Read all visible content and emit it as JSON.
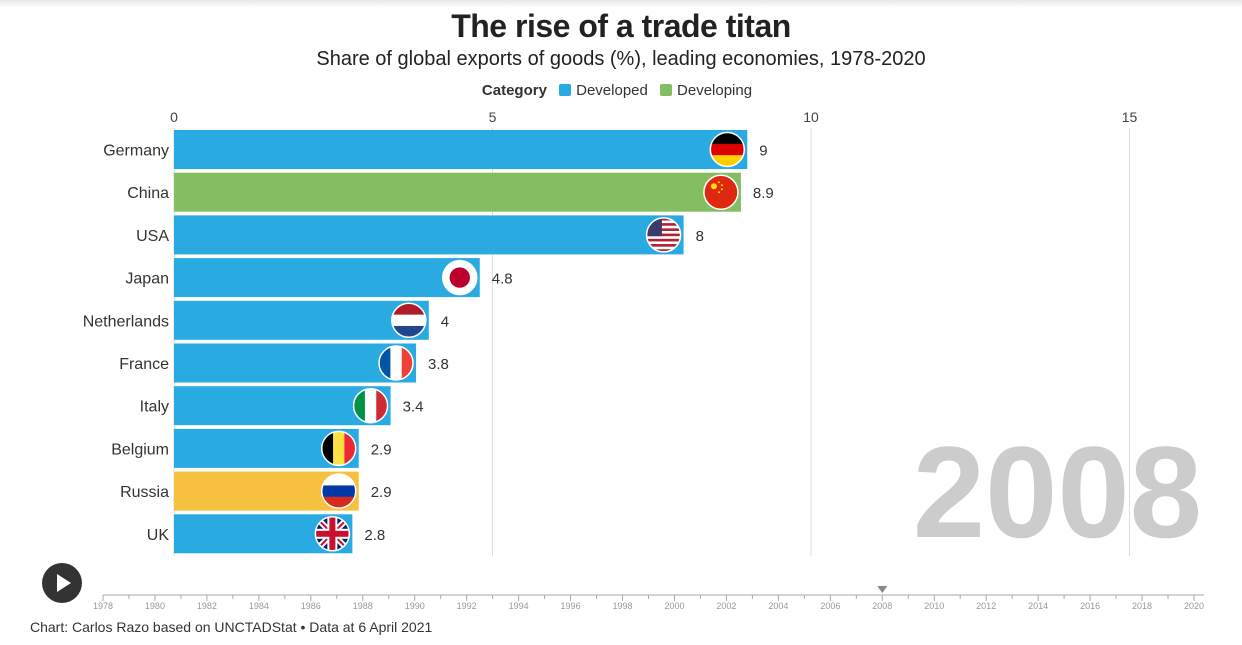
{
  "header": {
    "title": "The rise of a trade titan",
    "subtitle": "Share of global exports of goods (%), leading economies, 1978-2020"
  },
  "legend": {
    "title": "Category",
    "items": [
      {
        "label": "Developed",
        "color": "#29abe2"
      },
      {
        "label": "Developing",
        "color": "#85bd62"
      }
    ]
  },
  "chart_data": {
    "type": "bar",
    "orientation": "horizontal",
    "current_year": "2008",
    "categories": [
      "Germany",
      "China",
      "USA",
      "Japan",
      "Netherlands",
      "France",
      "Italy",
      "Belgium",
      "Russia",
      "UK"
    ],
    "values": [
      9,
      8.9,
      8,
      4.8,
      4,
      3.8,
      3.4,
      2.9,
      2.9,
      2.8
    ],
    "value_labels": [
      "9",
      "8.9",
      "8",
      "4.8",
      "4",
      "3.8",
      "3.4",
      "2.9",
      "2.9",
      "2.8"
    ],
    "bar_colors": [
      "#29abe2",
      "#85bd62",
      "#29abe2",
      "#29abe2",
      "#29abe2",
      "#29abe2",
      "#29abe2",
      "#29abe2",
      "#f7c140",
      "#29abe2"
    ],
    "flag_icons": [
      "flag-germany-icon",
      "flag-china-icon",
      "flag-usa-icon",
      "flag-japan-icon",
      "flag-netherlands-icon",
      "flag-france-icon",
      "flag-italy-icon",
      "flag-belgium-icon",
      "flag-russia-icon",
      "flag-uk-icon"
    ],
    "x_ticks": [
      0,
      5,
      10,
      15
    ],
    "x_tick_labels": [
      "0",
      "5",
      "10",
      "15"
    ],
    "xlim": [
      0,
      16.3
    ],
    "grid": true,
    "legend_position": "top-center"
  },
  "timeline": {
    "start": 1978,
    "end": 2020,
    "labels": [
      "1978",
      "1980",
      "1982",
      "1984",
      "1986",
      "1988",
      "1990",
      "1992",
      "1994",
      "1996",
      "1998",
      "2000",
      "2002",
      "2004",
      "2006",
      "2008",
      "2010",
      "2012",
      "2014",
      "2016",
      "2018",
      "2020"
    ],
    "current": 2008
  },
  "controls": {
    "play_icon": "play-icon"
  },
  "footer": {
    "source": "Chart: Carlos Razo based on UNCTADStat • Data at 6 April 2021"
  }
}
